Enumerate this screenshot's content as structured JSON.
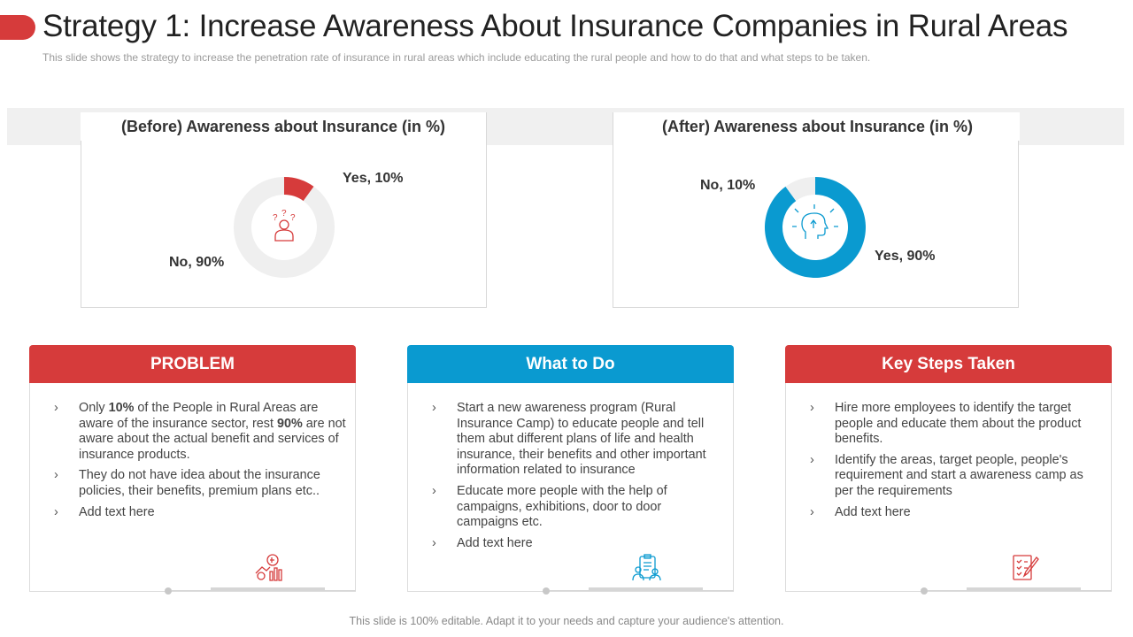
{
  "header": {
    "title": "Strategy 1: Increase Awareness About Insurance Companies in Rural Areas",
    "subtitle": "This slide shows the strategy to increase the penetration rate of insurance in rural areas which include educating the rural people and how to do that and what steps to be taken."
  },
  "chart_data": [
    {
      "type": "pie",
      "title": "(Before) Awareness about Insurance (in %)",
      "categories": [
        "Yes",
        "No"
      ],
      "values": [
        10,
        90
      ],
      "labels": [
        "Yes, 10%",
        "No, 90%"
      ],
      "colors": [
        "#d63b3b",
        "#efefef"
      ],
      "icon": "confused-person-icon"
    },
    {
      "type": "pie",
      "title": "(After) Awareness about Insurance (in %)",
      "categories": [
        "Yes",
        "No"
      ],
      "values": [
        90,
        10
      ],
      "labels": [
        "Yes, 90%",
        "No, 10%"
      ],
      "colors": [
        "#0a9ad0",
        "#efefef"
      ],
      "icon": "idea-head-icon"
    }
  ],
  "cards": [
    {
      "header": "PROBLEM",
      "color": "#d63b3b",
      "icon": "money-growth-icon",
      "bullets": [
        [
          "Only ",
          "10%",
          " of the People in Rural Areas are aware of the insurance sector, rest ",
          "90%",
          " are not aware about the actual benefit and services of insurance products."
        ],
        [
          "They do not have idea about the insurance policies, their benefits, premium plans etc.."
        ],
        [
          "Add text here"
        ]
      ]
    },
    {
      "header": "What to Do",
      "color": "#0a9ad0",
      "icon": "clipboard-team-icon",
      "bullets": [
        [
          "Start a new awareness program (Rural Insurance Camp) to educate people and tell them abut different plans of life and health insurance, their benefits and other important information related to insurance"
        ],
        [
          "Educate more people with the help of campaigns, exhibitions, door to door campaigns etc."
        ],
        [
          "Add text here"
        ]
      ]
    },
    {
      "header": "Key Steps Taken",
      "color": "#d63b3b",
      "icon": "checklist-pen-icon",
      "bullets": [
        [
          "Hire more employees to identify the target people and educate them about the product benefits."
        ],
        [
          "Identify the areas, target people, people's requirement and start a awareness camp as per the requirements"
        ],
        [
          "Add text here"
        ]
      ]
    }
  ],
  "footer": "This slide is 100% editable. Adapt it to your needs and capture your audience's attention."
}
